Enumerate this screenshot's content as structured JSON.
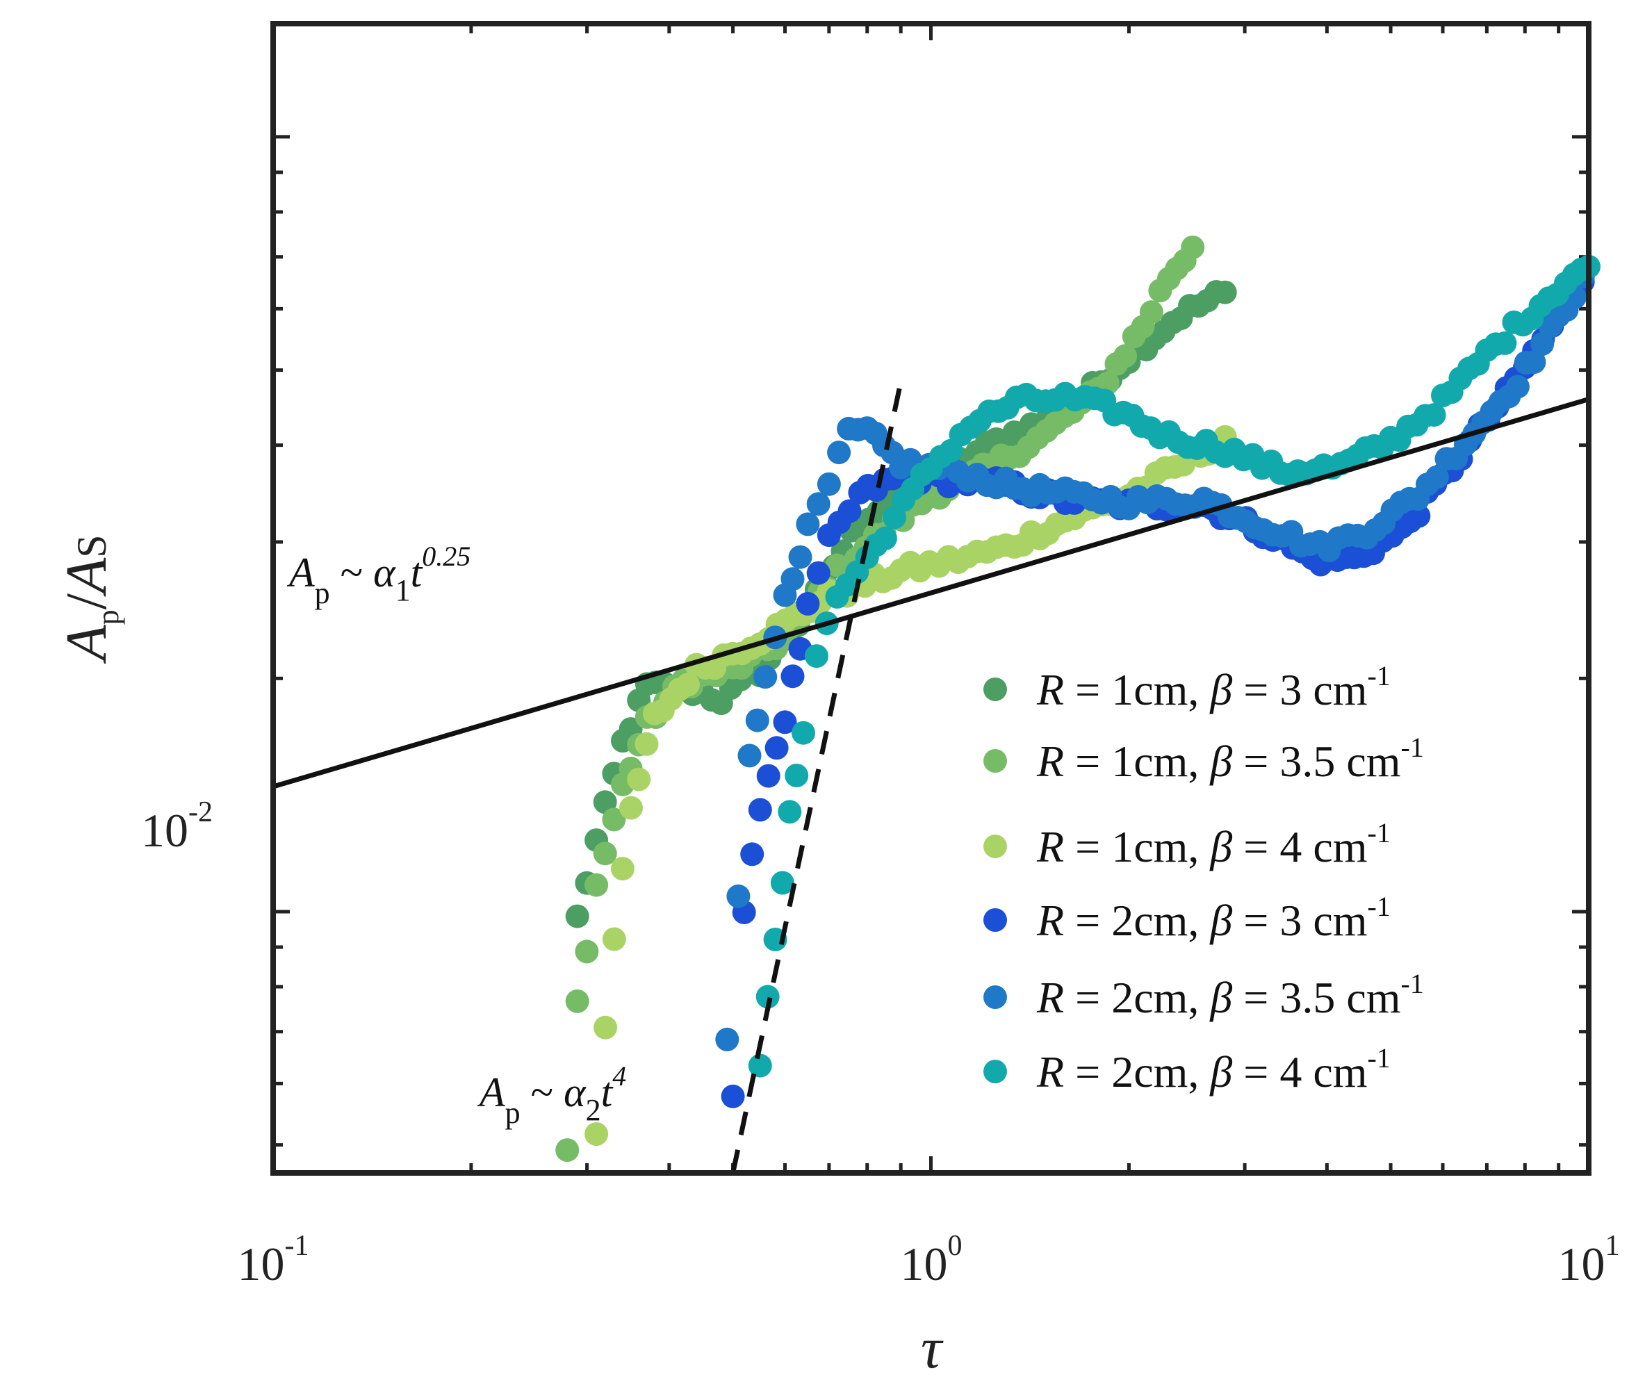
{
  "chart_data": {
    "type": "scatter",
    "title": "",
    "xlabel": "τ",
    "ylabel": {
      "main": "A",
      "sub_p": "p",
      "slash": "/",
      "main2": "A",
      "sub_s": "S"
    },
    "xscale": "log",
    "yscale": "log",
    "xlim": [
      0.1,
      10
    ],
    "ylim": [
      0.0046,
      0.14
    ],
    "x_ticks": [
      {
        "value": 0.1,
        "base": "10",
        "exp": "-1"
      },
      {
        "value": 1,
        "base": "10",
        "exp": "0"
      },
      {
        "value": 10,
        "base": "10",
        "exp": "1"
      }
    ],
    "y_ticks": [
      {
        "value": 0.01,
        "base": "10",
        "exp": "-2"
      }
    ],
    "legend_position": "lower-right",
    "series": [
      {
        "name": "R = 1cm, β = 3 cm-1",
        "label": {
          "r": "R",
          "rv": " = 1cm, ",
          "b": "β",
          "bv": " = 3 cm",
          "exp": "-1"
        },
        "color": "#4c9e63",
        "anchors": [
          [
            0.29,
            0.0098
          ],
          [
            0.31,
            0.0123
          ],
          [
            0.34,
            0.0165
          ],
          [
            0.37,
            0.0195
          ],
          [
            0.42,
            0.0195
          ],
          [
            0.48,
            0.0188
          ],
          [
            0.55,
            0.0205
          ],
          [
            0.65,
            0.0245
          ],
          [
            0.78,
            0.032
          ],
          [
            0.95,
            0.0355
          ],
          [
            1.1,
            0.038
          ],
          [
            1.3,
            0.041
          ],
          [
            1.6,
            0.044
          ],
          [
            2.0,
            0.052
          ],
          [
            2.4,
            0.059
          ],
          [
            2.8,
            0.063
          ]
        ]
      },
      {
        "name": "R = 1cm, β = 3.5 cm-1",
        "label": {
          "r": "R",
          "rv": " = 1cm, ",
          "b": "β",
          "bv": " = 3.5 cm",
          "exp": "-1"
        },
        "color": "#76bb66",
        "anchors": [
          [
            0.28,
            0.0049
          ],
          [
            0.29,
            0.0076
          ],
          [
            0.31,
            0.0108
          ],
          [
            0.34,
            0.0145
          ],
          [
            0.37,
            0.0175
          ],
          [
            0.42,
            0.0198
          ],
          [
            0.5,
            0.0205
          ],
          [
            0.6,
            0.0225
          ],
          [
            0.72,
            0.0275
          ],
          [
            0.85,
            0.031
          ],
          [
            1.0,
            0.0345
          ],
          [
            1.2,
            0.037
          ],
          [
            1.5,
            0.0415
          ],
          [
            1.8,
            0.047
          ],
          [
            2.1,
            0.057
          ],
          [
            2.3,
            0.066
          ],
          [
            2.5,
            0.072
          ]
        ]
      },
      {
        "name": "R = 1cm, β = 4 cm-1",
        "label": {
          "r": "R",
          "rv": " = 1cm, ",
          "b": "β",
          "bv": " = 4 cm",
          "exp": "-1"
        },
        "color": "#a9d465",
        "anchors": [
          [
            0.31,
            0.0052
          ],
          [
            0.32,
            0.0072
          ],
          [
            0.33,
            0.0092
          ],
          [
            0.35,
            0.0135
          ],
          [
            0.38,
            0.0178
          ],
          [
            0.44,
            0.0205
          ],
          [
            0.55,
            0.0225
          ],
          [
            0.7,
            0.0255
          ],
          [
            0.9,
            0.0275
          ],
          [
            1.1,
            0.0285
          ],
          [
            1.3,
            0.0295
          ],
          [
            1.6,
            0.032
          ],
          [
            2.0,
            0.0345
          ],
          [
            2.5,
            0.0385
          ],
          [
            2.8,
            0.041
          ]
        ]
      },
      {
        "name": "R = 2cm, β = 3 cm-1",
        "label": {
          "r": "R",
          "rv": " = 2cm, ",
          "b": "β",
          "bv": " = 3 cm",
          "exp": "-1"
        },
        "color": "#1a4fd6",
        "anchors": [
          [
            0.5,
            0.0058
          ],
          [
            0.52,
            0.0098
          ],
          [
            0.55,
            0.0138
          ],
          [
            0.6,
            0.0178
          ],
          [
            0.65,
            0.0245
          ],
          [
            0.7,
            0.03
          ],
          [
            0.78,
            0.0345
          ],
          [
            0.9,
            0.0365
          ],
          [
            1.1,
            0.036
          ],
          [
            1.3,
            0.0355
          ],
          [
            1.6,
            0.034
          ],
          [
            2.0,
            0.0335
          ],
          [
            2.6,
            0.0335
          ],
          [
            3.2,
            0.031
          ],
          [
            3.8,
            0.0285
          ],
          [
            4.4,
            0.0285
          ],
          [
            5.2,
            0.031
          ],
          [
            6.2,
            0.0375
          ],
          [
            7.5,
            0.0465
          ],
          [
            8.8,
            0.057
          ],
          [
            9.8,
            0.065
          ]
        ]
      },
      {
        "name": "R = 2cm, β = 3.5 cm-1",
        "label": {
          "r": "R",
          "rv": " = 2cm, ",
          "b": "β",
          "bv": " = 3.5 cm",
          "exp": "-1"
        },
        "color": "#1f78c8",
        "anchors": [
          [
            0.49,
            0.0069
          ],
          [
            0.53,
            0.0162
          ],
          [
            0.56,
            0.0198
          ],
          [
            0.6,
            0.0258
          ],
          [
            0.65,
            0.031
          ],
          [
            0.7,
            0.0355
          ],
          [
            0.75,
            0.0415
          ],
          [
            0.8,
            0.0415
          ],
          [
            0.9,
            0.038
          ],
          [
            1.1,
            0.037
          ],
          [
            1.3,
            0.0355
          ],
          [
            1.6,
            0.0345
          ],
          [
            2.0,
            0.0338
          ],
          [
            2.6,
            0.034
          ],
          [
            3.2,
            0.0315
          ],
          [
            3.9,
            0.0295
          ],
          [
            4.6,
            0.031
          ],
          [
            5.5,
            0.0345
          ],
          [
            6.5,
            0.0405
          ],
          [
            7.8,
            0.0485
          ],
          [
            9.0,
            0.058
          ],
          [
            9.8,
            0.066
          ]
        ]
      },
      {
        "name": "R = 2cm, β = 4 cm-1",
        "label": {
          "r": "R",
          "rv": " = 2cm, ",
          "b": "β",
          "bv": " = 4 cm",
          "exp": "-1"
        },
        "color": "#12a9ad",
        "anchors": [
          [
            0.55,
            0.0064
          ],
          [
            0.58,
            0.0091
          ],
          [
            0.61,
            0.0132
          ],
          [
            0.64,
            0.0173
          ],
          [
            0.67,
            0.0215
          ],
          [
            0.72,
            0.0255
          ],
          [
            0.8,
            0.0285
          ],
          [
            0.88,
            0.0322
          ],
          [
            1.0,
            0.0375
          ],
          [
            1.15,
            0.0425
          ],
          [
            1.35,
            0.0455
          ],
          [
            1.6,
            0.046
          ],
          [
            1.9,
            0.0445
          ],
          [
            2.3,
            0.041
          ],
          [
            2.8,
            0.0395
          ],
          [
            3.4,
            0.037
          ],
          [
            4.2,
            0.0375
          ],
          [
            5.0,
            0.0405
          ],
          [
            6.0,
            0.0455
          ],
          [
            7.0,
            0.0525
          ],
          [
            8.2,
            0.0595
          ],
          [
            9.5,
            0.0665
          ],
          [
            10.0,
            0.068
          ]
        ]
      }
    ],
    "fit_lines": [
      {
        "name": "power-law-0.25",
        "style": "solid",
        "exponent": 0.25,
        "x0": 0.1,
        "y0": 0.0145,
        "x_range": [
          0.1,
          10
        ]
      },
      {
        "name": "power-law-4",
        "style": "dashed",
        "exponent": 4,
        "x0": 0.5,
        "y0": 0.0046,
        "x_range": [
          0.5,
          0.9
        ]
      }
    ],
    "annotations": [
      {
        "name": "annotation-t025",
        "lhs": "A",
        "lhs_sub": "p",
        "op": " ~ ",
        "alpha": "α",
        "alpha_sub": "1",
        "var": "t",
        "exp": "0.25"
      },
      {
        "name": "annotation-t4",
        "lhs": "A",
        "lhs_sub": "p",
        "op": " ~ ",
        "alpha": "α",
        "alpha_sub": "2",
        "var": "t",
        "exp": "4"
      }
    ]
  }
}
